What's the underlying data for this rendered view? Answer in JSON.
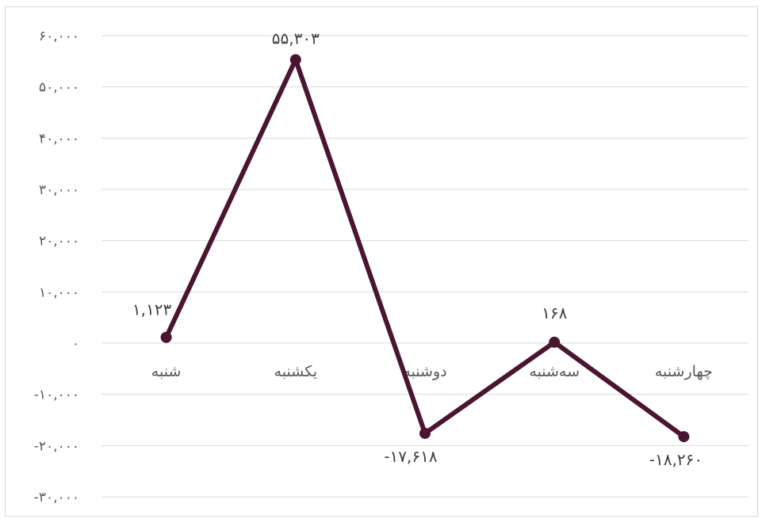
{
  "chart_data": {
    "type": "line",
    "title": "",
    "categories": [
      "شنبه",
      "یکشنبه",
      "دوشنبه",
      "سه‌شنبه",
      "چهارشنبه"
    ],
    "series": [
      {
        "values": [
          1123,
          55303,
          -17618,
          168,
          -18260
        ]
      }
    ],
    "data_labels": [
      "۱,۱۲۳",
      "۵۵,۳۰۳",
      "-۱۷,۶۱۸",
      "۱۶۸",
      "-۱۸,۲۶۰"
    ],
    "ylim": [
      -30000,
      60000
    ],
    "y_ticks": [
      60000,
      50000,
      40000,
      30000,
      20000,
      10000,
      0,
      -10000,
      -20000,
      -30000
    ],
    "y_tick_labels": [
      "۶۰,۰۰۰",
      "۵۰,۰۰۰",
      "۴۰,۰۰۰",
      "۳۰,۰۰۰",
      "۲۰,۰۰۰",
      "۱۰,۰۰۰",
      "۰",
      "-۱۰,۰۰۰",
      "-۲۰,۰۰۰",
      "-۳۰,۰۰۰"
    ],
    "grid": true,
    "legend": "none",
    "colors": {
      "line": "#4a1530",
      "grid": "#d9d9d9",
      "text": "#595959"
    }
  }
}
